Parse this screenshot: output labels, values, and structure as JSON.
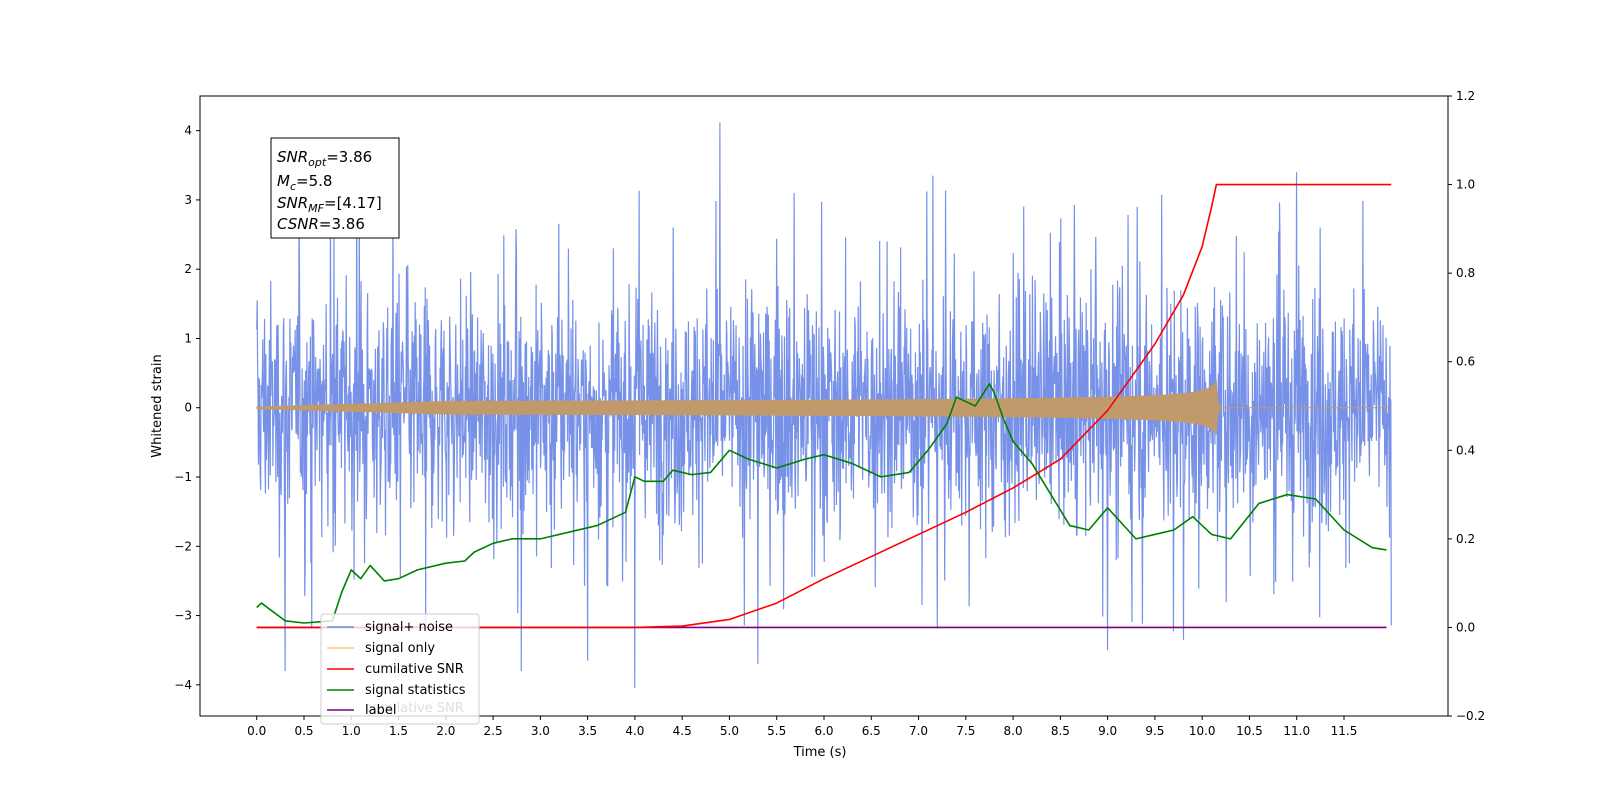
{
  "chart_data": {
    "type": "line",
    "xlabel": "Time (s)",
    "ylabel": "Whitened strain",
    "ylabel_right": "",
    "xlim": [
      -0.6,
      12.6
    ],
    "ylim": [
      -4.45,
      4.5
    ],
    "ylim_right": [
      -0.2,
      1.2
    ],
    "x_ticks": [
      "0.0",
      "0.5",
      "1.0",
      "1.5",
      "2.0",
      "2.5",
      "3.0",
      "3.5",
      "4.0",
      "4.5",
      "5.0",
      "5.5",
      "6.0",
      "6.5",
      "7.0",
      "7.5",
      "8.0",
      "8.5",
      "9.0",
      "9.5",
      "10.0",
      "10.5",
      "11.0",
      "11.5"
    ],
    "y_ticks_left": [
      "−4",
      "−3",
      "−2",
      "−1",
      "0",
      "1",
      "2",
      "3",
      "4"
    ],
    "y_ticks_right": [
      "−0.2",
      "0.0",
      "0.2",
      "0.4",
      "0.6",
      "0.8",
      "1.0",
      "1.2"
    ],
    "annotation": {
      "lines": [
        {
          "base": "SNR",
          "sub": "opt",
          "rest": "=3.86"
        },
        {
          "base": "M",
          "sub": "c",
          "rest": "=5.8"
        },
        {
          "base": "SNR",
          "sub": "MF",
          "rest": "=[4.17]"
        },
        {
          "base": "CSNR",
          "sub": "",
          "rest": "=3.86"
        }
      ]
    },
    "legend": {
      "placement": "lower-left",
      "entries": [
        "signal+ noise",
        "signal only",
        "cumilative SNR",
        "signal statistics",
        "label"
      ],
      "ghost_text": "cumilative SNR"
    },
    "series": [
      {
        "name": "signal+ noise",
        "axis": "left",
        "color": "#6f8be6",
        "style": "noise",
        "x_range": [
          0.0,
          12.0
        ],
        "typical_range": [
          -1.7,
          1.7
        ],
        "extremes": [
          -4.05,
          4.12
        ],
        "spikes": [
          [
            4.9,
            4.12
          ],
          [
            4.0,
            -4.05
          ],
          [
            0.3,
            -3.8
          ],
          [
            9.0,
            -3.5
          ],
          [
            3.5,
            -3.65
          ],
          [
            5.3,
            -3.7
          ],
          [
            11.0,
            3.4
          ],
          [
            7.15,
            3.35
          ],
          [
            9.8,
            -3.35
          ],
          [
            2.8,
            -3.8
          ]
        ]
      },
      {
        "name": "signal only",
        "axis": "left",
        "color": "#c09a6b",
        "style": "chirp",
        "x_range": [
          0.0,
          12.0
        ],
        "merger_time": 10.15,
        "peak_amplitude": 0.4
      },
      {
        "name": "cumilative SNR",
        "axis": "right",
        "color": "#ff0000",
        "x": [
          0.0,
          4.0,
          4.5,
          5.0,
          5.5,
          6.0,
          6.5,
          7.0,
          7.5,
          8.0,
          8.5,
          9.0,
          9.5,
          9.8,
          10.0,
          10.1,
          10.15,
          12.0
        ],
        "y": [
          0.0,
          0.0,
          0.003,
          0.018,
          0.055,
          0.11,
          0.16,
          0.21,
          0.26,
          0.315,
          0.38,
          0.49,
          0.64,
          0.75,
          0.86,
          0.95,
          1.0,
          1.0
        ]
      },
      {
        "name": "signal statistics",
        "axis": "right",
        "color": "#008000",
        "x": [
          0.0,
          0.05,
          0.3,
          0.5,
          0.8,
          0.9,
          1.0,
          1.1,
          1.2,
          1.35,
          1.5,
          1.7,
          2.0,
          2.2,
          2.3,
          2.5,
          2.7,
          3.0,
          3.3,
          3.6,
          3.9,
          4.0,
          4.1,
          4.3,
          4.4,
          4.6,
          4.8,
          5.0,
          5.2,
          5.5,
          5.8,
          6.0,
          6.3,
          6.6,
          6.9,
          7.1,
          7.3,
          7.4,
          7.6,
          7.75,
          7.8,
          7.9,
          8.0,
          8.2,
          8.4,
          8.6,
          8.8,
          9.0,
          9.3,
          9.5,
          9.7,
          9.9,
          10.1,
          10.3,
          10.6,
          10.9,
          11.2,
          11.5,
          11.8,
          11.95
        ],
        "y": [
          0.045,
          0.055,
          0.015,
          0.01,
          0.015,
          0.08,
          0.13,
          0.11,
          0.14,
          0.105,
          0.11,
          0.13,
          0.145,
          0.15,
          0.17,
          0.19,
          0.2,
          0.2,
          0.215,
          0.23,
          0.26,
          0.34,
          0.33,
          0.33,
          0.355,
          0.345,
          0.35,
          0.4,
          0.38,
          0.36,
          0.38,
          0.39,
          0.37,
          0.34,
          0.35,
          0.4,
          0.46,
          0.52,
          0.5,
          0.55,
          0.53,
          0.47,
          0.42,
          0.37,
          0.3,
          0.23,
          0.22,
          0.27,
          0.2,
          0.21,
          0.22,
          0.25,
          0.21,
          0.2,
          0.28,
          0.3,
          0.29,
          0.22,
          0.18,
          0.175
        ]
      },
      {
        "name": "label",
        "axis": "right",
        "color": "#800080",
        "x": [
          0.0,
          11.95
        ],
        "y": [
          0.0,
          0.0
        ]
      }
    ]
  }
}
